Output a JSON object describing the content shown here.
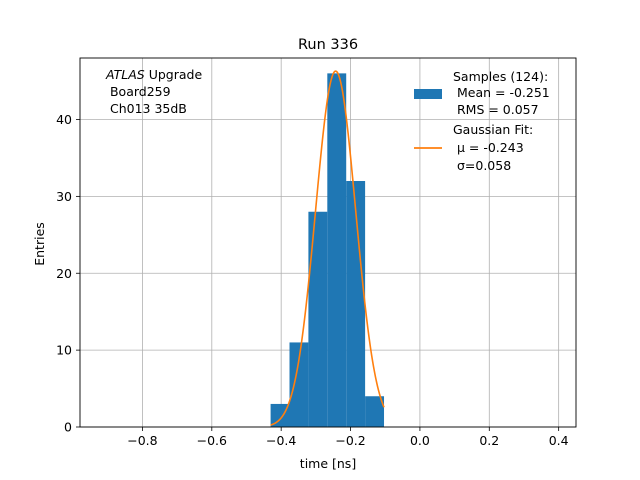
{
  "chart_data": {
    "type": "bar",
    "title": "Run 336",
    "xlabel": "time [ns]",
    "ylabel": "Entries",
    "xlim": [
      -0.98,
      0.45
    ],
    "ylim": [
      0,
      48
    ],
    "grid": true,
    "xticks": [
      -0.8,
      -0.6,
      -0.4,
      -0.2,
      0.0,
      0.2,
      0.4
    ],
    "xtick_labels": [
      "−0.8",
      "−0.6",
      "−0.4",
      "−0.2",
      "0.0",
      "0.2",
      "0.4"
    ],
    "yticks": [
      0,
      10,
      20,
      30,
      40
    ],
    "ytick_labels": [
      "0",
      "10",
      "20",
      "30",
      "40"
    ],
    "histogram": {
      "name": "Samples",
      "color": "#1f77b4",
      "bins": [
        {
          "x0": -0.4305,
          "x1": -0.376,
          "count": 3
        },
        {
          "x0": -0.376,
          "x1": -0.3215,
          "count": 11
        },
        {
          "x0": -0.3215,
          "x1": -0.267,
          "count": 28
        },
        {
          "x0": -0.267,
          "x1": -0.2125,
          "count": 46
        },
        {
          "x0": -0.2125,
          "x1": -0.158,
          "count": 32
        },
        {
          "x0": -0.158,
          "x1": -0.1035,
          "count": 4
        }
      ]
    },
    "fit": {
      "name": "Gaussian Fit",
      "color": "#ff7f0e",
      "mu": -0.243,
      "sigma": 0.058,
      "amplitude": 46.3,
      "x_range": [
        -0.4305,
        -0.1035
      ]
    },
    "annotation": {
      "italic": "ATLAS",
      "rest": " Upgrade",
      "line2": " Board259",
      "line3": " Ch013 35dB"
    },
    "legend": {
      "position": "top-right",
      "hist_lines": [
        "Samples (124):",
        " Mean = -0.251",
        " RMS = 0.057"
      ],
      "fit_lines": [
        "Gaussian Fit:",
        " μ = -0.243",
        " σ=0.058"
      ]
    }
  }
}
